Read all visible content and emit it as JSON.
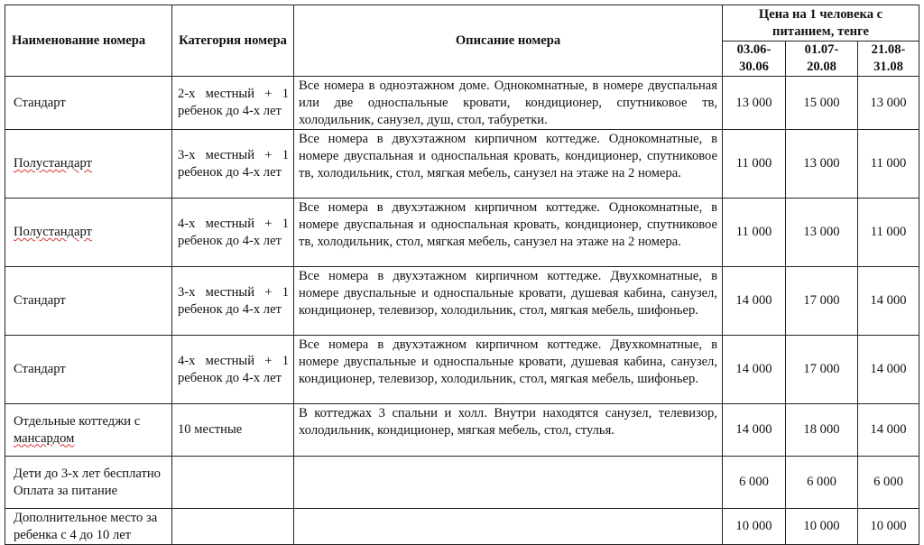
{
  "header": {
    "name": "Наименование номера",
    "category": "Категория номера",
    "description": "Описание номера",
    "price_group": "Цена на 1 человека с питанием, тенге",
    "periods": [
      "03.06-30.06",
      "01.07-20.08",
      "21.08-31.08"
    ]
  },
  "rows": [
    {
      "name": "Стандарт",
      "category": "2-х местный + 1 ребенок до 4-х лет",
      "description": "Все номера в одноэтажном доме. Однокомнатные, в номере двуспальная или две односпальные кровати, кондиционер, спутниковое тв, холодильник, санузел, душ, стол, табуретки.",
      "prices": [
        "13 000",
        "15 000",
        "13 000"
      ]
    },
    {
      "name": "Полустандарт",
      "category": "3-х местный + 1 ребенок до 4-х лет",
      "description": "Все номера в двухэтажном кирпичном коттедже. Однокомнатные, в номере двуспальная и односпальная кровать, кондиционер, спутниковое тв, холодильник, стол, мягкая мебель, санузел на этаже на 2 номера.",
      "prices": [
        "11 000",
        "13 000",
        "11 000"
      ]
    },
    {
      "name": "Полустандарт",
      "category": "4-х местный + 1 ребенок до 4-х лет",
      "description": "Все номера в двухэтажном кирпичном коттедже. Однокомнатные, в номере двуспальная и односпальная кровать, кондиционер, спутниковое тв, холодильник, стол, мягкая мебель, санузел на этаже на 2 номера.",
      "prices": [
        "11 000",
        "13 000",
        "11 000"
      ]
    },
    {
      "name": "Стандарт",
      "category": "3-х местный + 1 ребенок до 4-х лет",
      "description": "Все номера в двухэтажном кирпичном коттедже. Двухкомнатные, в номере двуспальные и односпальные кровати, душевая кабина, санузел, кондиционер, телевизор, холодильник, стол, мягкая мебель, шифоньер.",
      "prices": [
        "14 000",
        "17 000",
        "14 000"
      ]
    },
    {
      "name": "Стандарт",
      "category": "4-х местный + 1 ребенок до 4-х лет",
      "description": "Все номера в двухэтажном кирпичном коттедже. Двухкомнатные, в номере двуспальные и односпальные кровати, душевая кабина, санузел, кондиционер, телевизор, холодильник, стол, мягкая мебель, шифоньер.",
      "prices": [
        "14 000",
        "17 000",
        "14 000"
      ]
    },
    {
      "name": "Отдельные коттеджи с ",
      "name2": "мансардом",
      "category": "10 местные",
      "description": "В коттеджах 3 спальни и холл. Внутри находятся санузел, телевизор, холодильник, кондиционер, мягкая мебель, стол, стулья.",
      "prices": [
        "14 000",
        "18 000",
        "14 000"
      ]
    },
    {
      "name": "Дети до 3-х лет бесплатно",
      "name2": "Оплата за питание",
      "category": "",
      "description": "",
      "prices": [
        "6 000",
        "6 000",
        "6 000"
      ]
    },
    {
      "name": "Дополнительное место за ребенка с 4 до 10 лет",
      "category": "",
      "description": "",
      "prices": [
        "10 000",
        "10 000",
        "10 000"
      ]
    }
  ]
}
